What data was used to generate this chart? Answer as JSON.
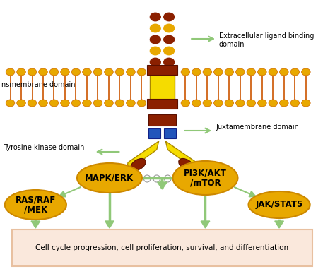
{
  "bg_color": "#ffffff",
  "ellipse_color": "#E8A800",
  "ellipse_edge": "#CC8800",
  "arrow_color": "#90C878",
  "box_bg": "#FAE8DC",
  "box_edge": "#E8C0A0",
  "gold": "#E8A800",
  "dark_red": "#8B2000",
  "yellow": "#F5DC00",
  "blue": "#2255BB",
  "mem_link": "#CC5500",
  "labels": {
    "extracellular": "Extracellular ligand binding\ndomain",
    "transmembrane": "nsmembrane domain",
    "juxtamembrane": "Juxtamembrane domain",
    "tyrosine": "Tyrosine kinase domain",
    "mapk": "MAPK/ERK",
    "pi3k": "PI3K/AKT\n/mTOR",
    "ras": "RAS/RAF\n/MEK",
    "jak": "JAK/STAT5",
    "bottom": "Cell cycle progression, cell proliferation, survival, and differentiation"
  }
}
